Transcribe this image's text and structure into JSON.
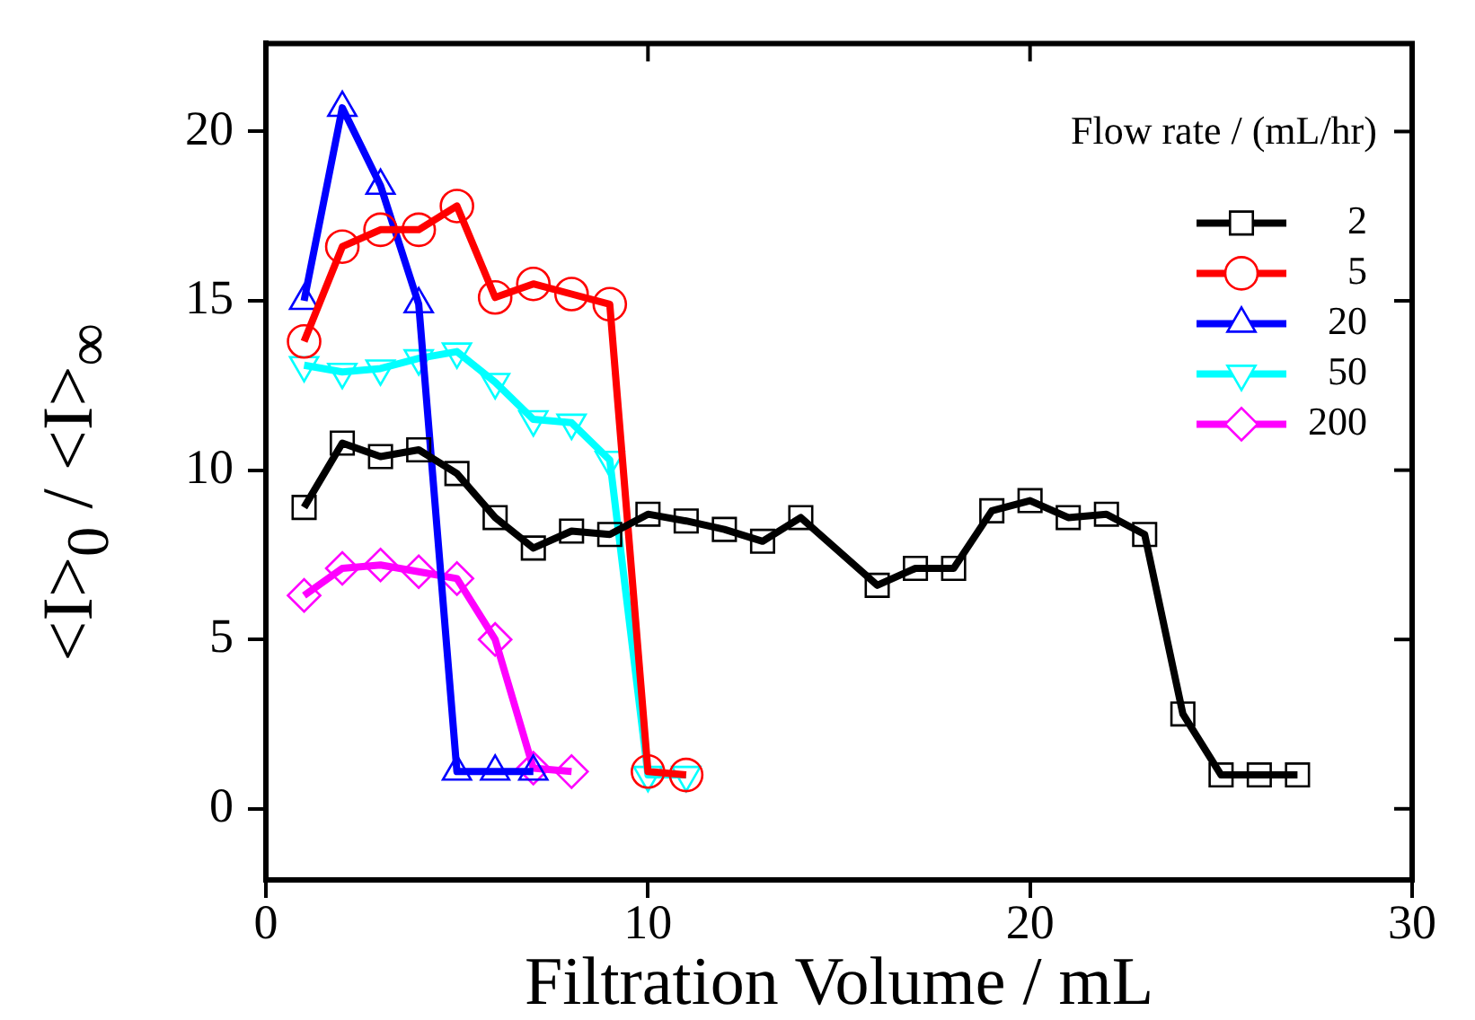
{
  "chart_data": {
    "type": "line",
    "xlabel": "Filtration Volume / mL",
    "ylabel": "<I>$_{0}$ / <I>$_{∞}$",
    "legend_title": "Flow rate / (mL/hr)",
    "legend": "top right",
    "grid": false,
    "xlim": [
      0,
      30
    ],
    "xticks": [
      0,
      10,
      20,
      30
    ],
    "ylim": [
      -2.1,
      22.6
    ],
    "yticks": [
      0,
      5,
      10,
      15,
      20
    ],
    "series": [
      {
        "name": "2",
        "color": "#000000",
        "marker": "square",
        "x": [
          1,
          2,
          3,
          4,
          5,
          6,
          7,
          8,
          9,
          10,
          11,
          12,
          13,
          14,
          16,
          17,
          18,
          19,
          20,
          21,
          22,
          23,
          24,
          25,
          26,
          27
        ],
        "values": [
          8.9,
          10.8,
          10.4,
          10.6,
          9.9,
          8.6,
          7.7,
          8.2,
          8.1,
          8.7,
          8.5,
          8.25,
          7.9,
          8.6,
          6.6,
          7.1,
          7.1,
          8.8,
          9.1,
          8.6,
          8.7,
          8.1,
          2.8,
          1.0,
          1.0,
          1.0
        ]
      },
      {
        "name": "5",
        "color": "#ff0000",
        "marker": "circle",
        "x": [
          1,
          2,
          3,
          4,
          5,
          6,
          7,
          8,
          9,
          10,
          11
        ],
        "values": [
          13.8,
          16.6,
          17.1,
          17.1,
          17.8,
          15.1,
          15.5,
          15.2,
          14.9,
          1.1,
          1.0
        ]
      },
      {
        "name": "20",
        "color": "#0000ff",
        "marker": "triangle",
        "x": [
          1,
          2,
          3,
          4,
          5,
          6,
          7
        ],
        "values": [
          15.0,
          20.7,
          18.4,
          14.9,
          1.1,
          1.1,
          1.1
        ]
      },
      {
        "name": "50",
        "color": "#00ffff",
        "marker": "triangle-down",
        "x": [
          1,
          2,
          3,
          4,
          5,
          6,
          7,
          8,
          9,
          10,
          11
        ],
        "values": [
          13.1,
          12.9,
          13.0,
          13.3,
          13.5,
          12.6,
          11.5,
          11.4,
          10.3,
          1.0,
          1.0
        ]
      },
      {
        "name": "200",
        "color": "#ff00ff",
        "marker": "diamond",
        "x": [
          1,
          2,
          3,
          4,
          5,
          6,
          7,
          8
        ],
        "values": [
          6.3,
          7.1,
          7.2,
          7.0,
          6.8,
          5.0,
          1.2,
          1.1
        ]
      }
    ]
  }
}
